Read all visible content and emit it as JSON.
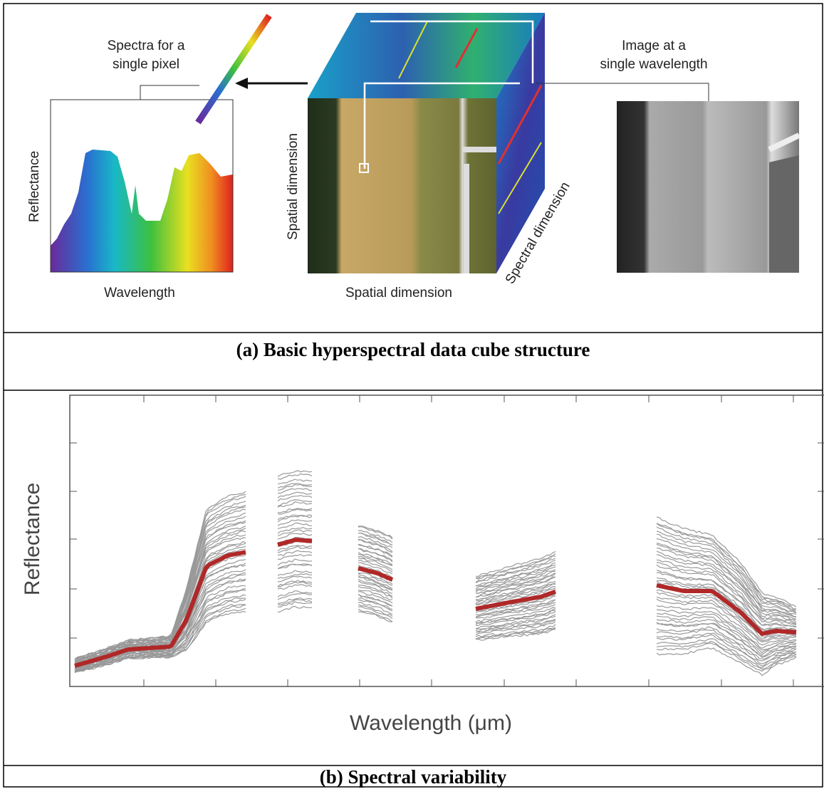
{
  "panel_a": {
    "spectrum_label": [
      "Spectra for a",
      "single pixel"
    ],
    "spectrum_y_label": "Reflectance",
    "spectrum_x_label": "Wavelength",
    "cube_vertical_label": "Spatial dimension",
    "cube_horizontal_label": "Spatial dimension",
    "cube_depth_label": "Spectral dimension",
    "image_label": [
      "Image at a",
      "single wavelength"
    ],
    "caption": "(a) Basic hyperspectral data cube structure"
  },
  "panel_b": {
    "y_label": "Reflectance",
    "x_label": "Wavelength (μm)",
    "caption": "(b) Spectral variability"
  }
}
